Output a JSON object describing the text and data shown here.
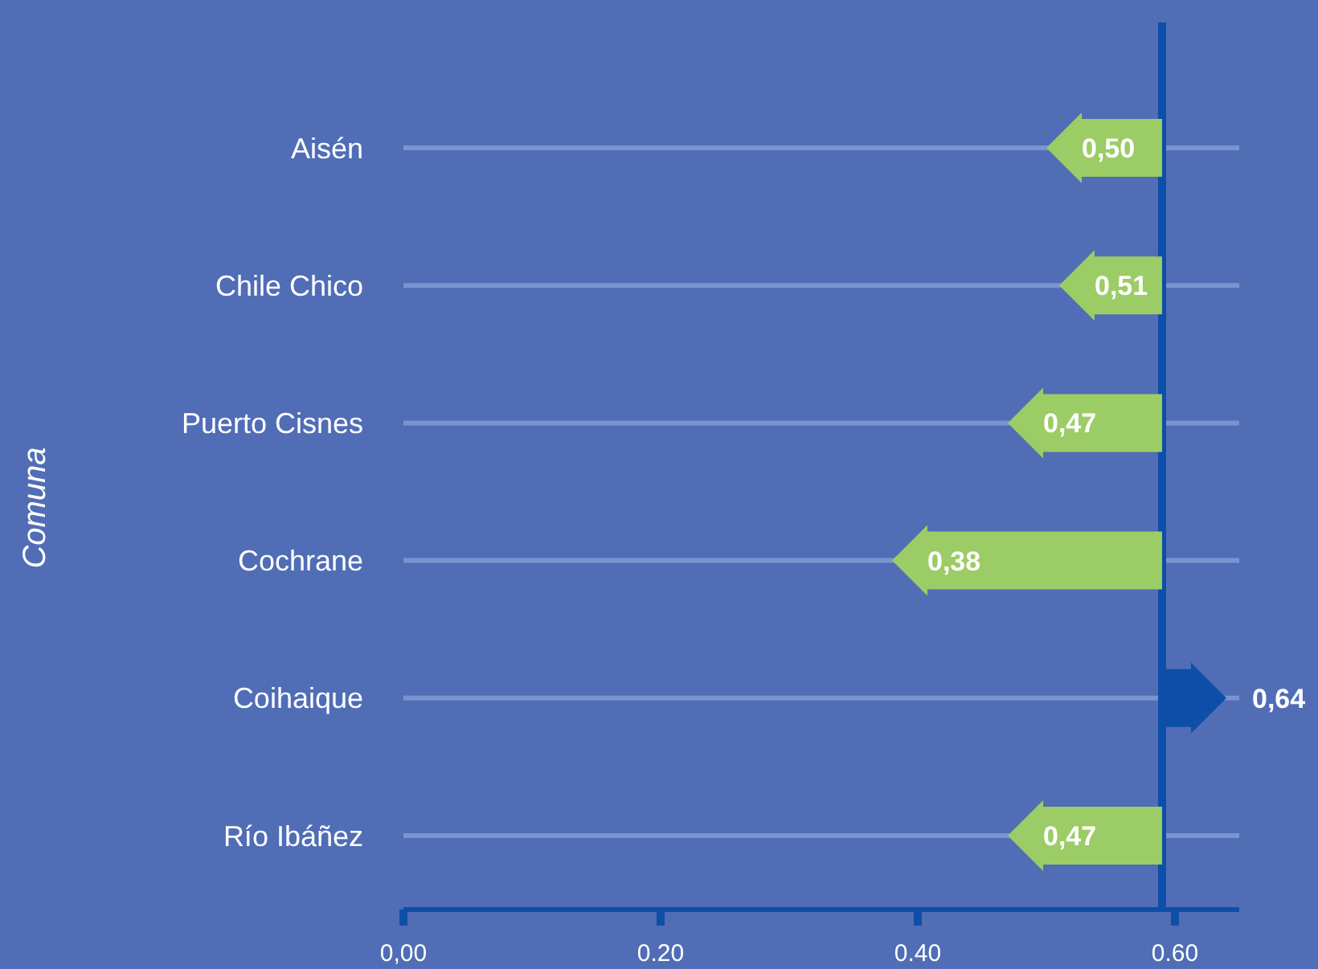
{
  "chart_data": {
    "type": "bar",
    "orientation": "horizontal",
    "ylabel": "Comuna",
    "categories": [
      "Aisén",
      "Chile Chico",
      "Puerto  Cisnes",
      "Cochrane",
      "Coihaique",
      "Río Ibáñez"
    ],
    "base": [
      0.59,
      0.59,
      0.59,
      0.59,
      0.59,
      0.59
    ],
    "values": [
      -0.09,
      -0.08,
      -0.12,
      -0.21,
      0.05,
      -0.12
    ],
    "value_labels": [
      "0,50",
      "0,51",
      "0,47",
      "0,38",
      "0,64",
      "0,47"
    ],
    "colors": [
      "#9ccc65",
      "#9ccc65",
      "#9ccc65",
      "#9ccc65",
      "#0d4fa8",
      "#9ccc65"
    ],
    "xlim": [
      0,
      0.65
    ],
    "xticks": [
      {
        "value": 0,
        "label": "0,00"
      },
      {
        "value": 0.2,
        "label": "0.20"
      },
      {
        "value": 0.4,
        "label": "0.40"
      },
      {
        "value": 0.6,
        "label": "0.60"
      }
    ],
    "ref_lines": [
      {
        "axis": "x",
        "value": 0.59,
        "label": null,
        "color": "#0d4fa8"
      }
    ],
    "grid": "y",
    "legend": false
  }
}
